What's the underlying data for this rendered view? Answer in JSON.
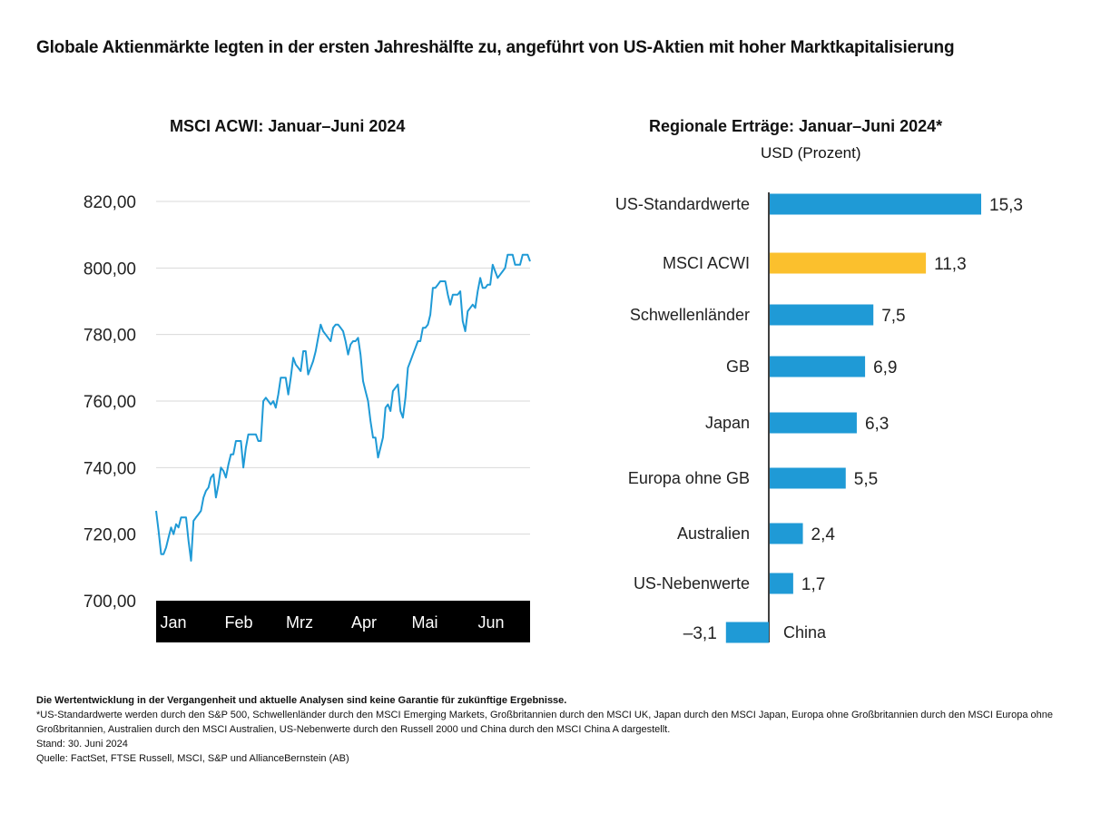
{
  "main_title": "Globale Aktienmärkte legten in der ersten Jahreshälfte zu, angeführt von US-Aktien mit hoher Marktkapitalisierung",
  "chart_data": [
    {
      "type": "line",
      "title": "MSCI ACWI: Januar–Juni 2024",
      "xlabel": "",
      "ylabel": "",
      "ylim": [
        700,
        820
      ],
      "ytick_labels": [
        "820,00",
        "800,00",
        "780,00",
        "760,00",
        "740,00",
        "720,00",
        "700,00"
      ],
      "yticks": [
        820,
        800,
        780,
        760,
        740,
        720,
        700
      ],
      "month_labels": [
        "Jan",
        "Feb",
        "Mrz",
        "Apr",
        "Mai",
        "Jun"
      ],
      "grid": true,
      "colors": {
        "line": "#1f9ad6",
        "axis_band": "#000000",
        "grid": "#d9d9d9"
      },
      "series": [
        {
          "name": "MSCI ACWI",
          "values": [
            727,
            721,
            714,
            714,
            716,
            719,
            722,
            720,
            723,
            722,
            725,
            725,
            725,
            718,
            712,
            724,
            725,
            726,
            727,
            731,
            733,
            734,
            737,
            738,
            731,
            735,
            740,
            739,
            737,
            741,
            744,
            744,
            748,
            748,
            748,
            740,
            746,
            750,
            750,
            750,
            750,
            748,
            748,
            760,
            761,
            760,
            759,
            760,
            758,
            762,
            767,
            767,
            767,
            762,
            767,
            773,
            771,
            770,
            769,
            775,
            775,
            768,
            770,
            772,
            775,
            779,
            783,
            781,
            780,
            779,
            778,
            782,
            783,
            783,
            782,
            781,
            778,
            774,
            777,
            778,
            778,
            779,
            774,
            766,
            763,
            760,
            754,
            749,
            749,
            743,
            746,
            749,
            758,
            759,
            757,
            763,
            764,
            765,
            757,
            755,
            761,
            770,
            772,
            774,
            776,
            778,
            778,
            782,
            782,
            783,
            786,
            794,
            794,
            795,
            796,
            796,
            796,
            792,
            789,
            792,
            792,
            792,
            793,
            784,
            781,
            787,
            788,
            789,
            788,
            793,
            797,
            794,
            794,
            795,
            795,
            801,
            799,
            797,
            798,
            799,
            800,
            804,
            804,
            804,
            801,
            801,
            801,
            804,
            804,
            804,
            802
          ]
        }
      ]
    },
    {
      "type": "bar",
      "orientation": "horizontal",
      "title": "Regionale Erträge: Januar–Juni 2024*",
      "subtitle": "USD (Prozent)",
      "categories": [
        "US-Standardwerte",
        "MSCI ACWI",
        "Schwellenländer",
        "GB",
        "Japan",
        "Europa ohne GB",
        "Australien",
        "US-Nebenwerte",
        "China"
      ],
      "values": [
        15.3,
        11.3,
        7.5,
        6.9,
        6.3,
        5.5,
        2.4,
        1.7,
        -3.1
      ],
      "value_labels": [
        "15,3",
        "11,3",
        "7,5",
        "6,9",
        "6,3",
        "5,5",
        "2,4",
        "1,7",
        "–3,1"
      ],
      "highlight_category": "MSCI ACWI",
      "colors": {
        "bar": "#1f9ad6",
        "highlight": "#fbc02d",
        "axis": "#000000"
      }
    }
  ],
  "footnotes": {
    "disclaimer": "Die Wertentwicklung in der Vergangenheit und aktuelle Analysen sind keine Garantie für zukünftige Ergebnisse.",
    "note": "*US-Standardwerte werden durch den S&P 500, Schwellenländer durch den MSCI Emerging Markets, Großbritannien durch den MSCI UK, Japan durch den MSCI Japan, Europa ohne Großbritannien durch den MSCI Europa ohne Großbritannien, Australien durch den MSCI Australien, US-Nebenwerte durch den Russell 2000 und China durch den MSCI China A dargestellt.",
    "date": "Stand: 30. Juni 2024",
    "source": "Quelle: FactSet, FTSE Russell, MSCI, S&P und AllianceBernstein (AB)"
  }
}
